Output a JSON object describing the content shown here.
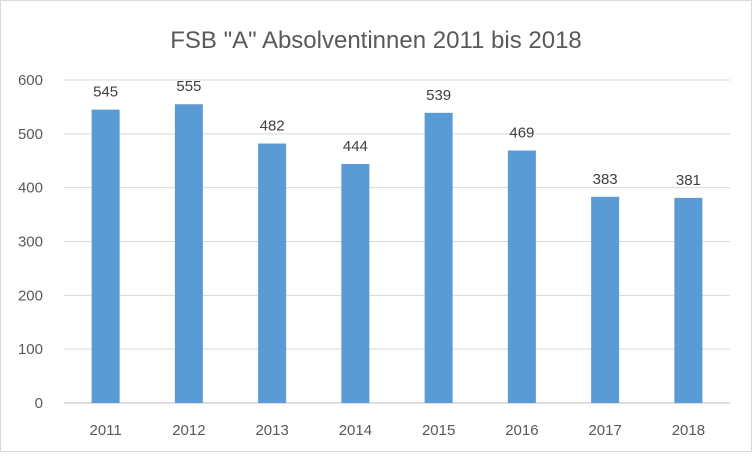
{
  "chart_data": {
    "type": "bar",
    "title": "FSB \"A\" Absolventinnen 2011 bis 2018",
    "xlabel": "",
    "ylabel": "",
    "categories": [
      "2011",
      "2012",
      "2013",
      "2014",
      "2015",
      "2016",
      "2017",
      "2018"
    ],
    "values": [
      545,
      555,
      482,
      444,
      539,
      469,
      383,
      381
    ],
    "ylim": [
      0,
      600
    ],
    "yticks": [
      0,
      100,
      200,
      300,
      400,
      500,
      600
    ],
    "grid": true,
    "legend": "none",
    "data_labels": true,
    "bar_color": "#5b9bd5"
  }
}
